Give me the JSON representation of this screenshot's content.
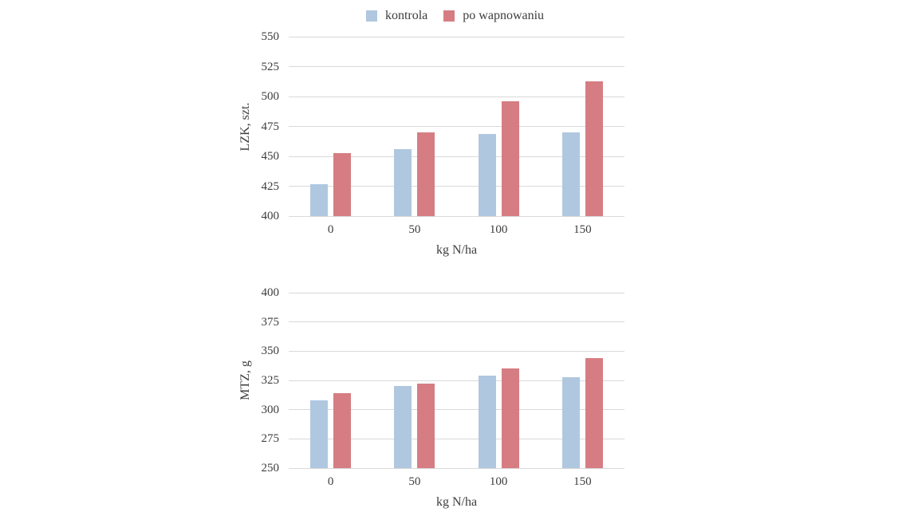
{
  "page": {
    "background": "#ffffff",
    "text_color": "#3d3d3d",
    "gridline_color": "#d9d9d9"
  },
  "legend": {
    "items": [
      {
        "label": "kontrola",
        "color": "#b0c7e0"
      },
      {
        "label": "po wapnowaniu",
        "color": "#d67d83"
      }
    ]
  },
  "chart_data": [
    {
      "type": "bar",
      "ylabel": "LZK, szt.",
      "xlabel": "kg N/ha",
      "categories": [
        "0",
        "50",
        "100",
        "150"
      ],
      "series": [
        {
          "name": "kontrola",
          "color": "#b0c7e0",
          "values": [
            427,
            456,
            469,
            470
          ]
        },
        {
          "name": "po wapnowaniu",
          "color": "#d67d83",
          "values": [
            453,
            470,
            496,
            513
          ]
        }
      ],
      "ylim": [
        400,
        550
      ],
      "yticks": [
        400,
        425,
        450,
        475,
        500,
        525,
        550
      ],
      "grid": true,
      "legend_position": "top-center"
    },
    {
      "type": "bar",
      "ylabel": "MTZ, g",
      "xlabel": "kg N/ha",
      "categories": [
        "0",
        "50",
        "100",
        "150"
      ],
      "series": [
        {
          "name": "kontrola",
          "color": "#b0c7e0",
          "values": [
            308,
            320,
            329,
            328
          ]
        },
        {
          "name": "po wapnowaniu",
          "color": "#d67d83",
          "values": [
            314,
            322,
            335,
            344
          ]
        }
      ],
      "ylim": [
        250,
        400
      ],
      "yticks": [
        250,
        275,
        300,
        325,
        350,
        375,
        400
      ],
      "grid": true,
      "legend_position": "none"
    }
  ]
}
